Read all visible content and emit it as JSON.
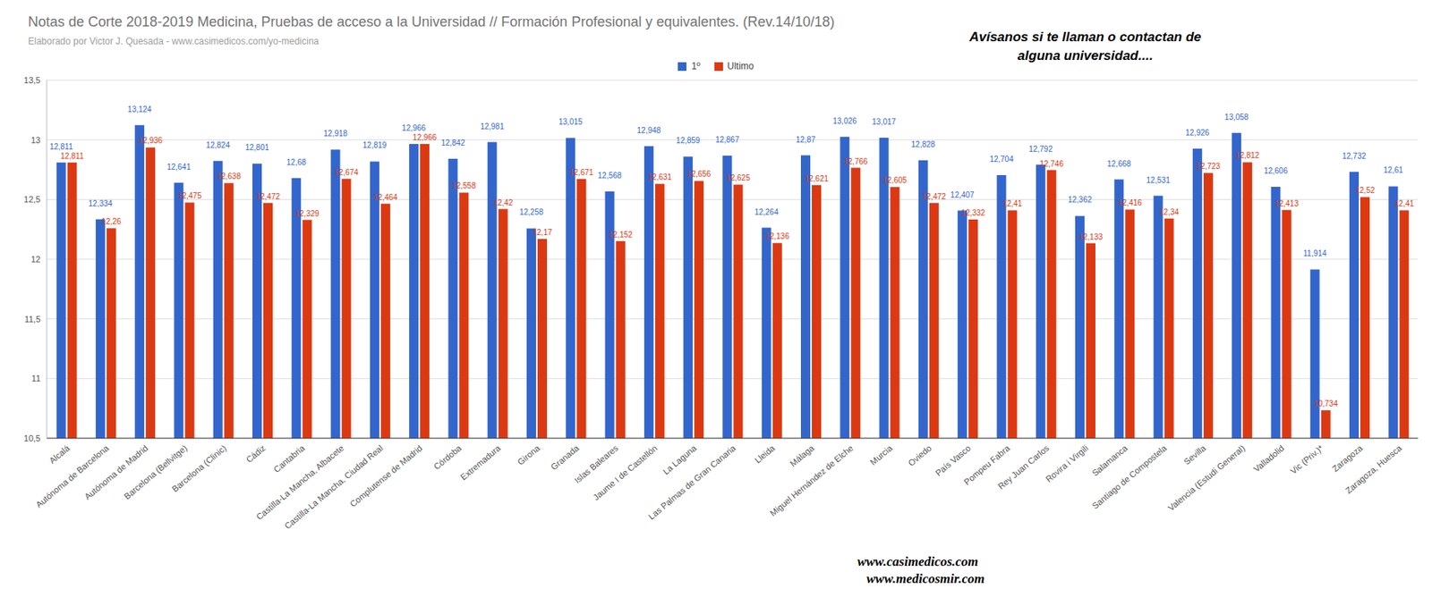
{
  "chart_data": {
    "type": "bar",
    "title": "Notas de Corte 2018-2019 Medicina, Pruebas de acceso a la Universidad // Formación Profesional y equivalentes. (Rev.14/10/18)",
    "subtitle": "Elaborado por Victor J. Quesada - www.casimedicos.com/yo-medicina",
    "annotations": [
      "Avísanos si te llaman o contactan de alguna universidad....",
      "www.casimedicos.com",
      "www.medicosmir.com"
    ],
    "categories": [
      "Alcalá",
      "Autónoma de Barcelona",
      "Autónoma de Madrid",
      "Barcelona (Bellvitge)",
      "Barcelona (Clinic)",
      "Cádiz",
      "Cantabria",
      "Castilla-La Mancha, Albacete",
      "Castilla-La Mancha, Ciudad Real",
      "Complutense de Madrid",
      "Córdoba",
      "Extremadura",
      "Girona",
      "Granada",
      "Islas Baleares",
      "Jaume I de Castellón",
      "La Laguna",
      "Las Palmas de Gran Canaria",
      "Lleida",
      "Málaga",
      "Miguel Hernández de Elche",
      "Murcia",
      "Oviedo",
      "País Vasco",
      "Pompeu Fabra",
      "Rey Juan Carlos",
      "Rovira i Virgili",
      "Salamanca",
      "Santiago de Compostela",
      "Sevilla",
      "Valencia (Estudi General)",
      "Valladolid",
      "Vic (Priv.)*",
      "Zaragoza",
      "Zaragoza, Huesca"
    ],
    "series": [
      {
        "name": "1º",
        "color": "#3366cc",
        "values": [
          12.811,
          12.334,
          13.124,
          12.641,
          12.824,
          12.801,
          12.68,
          12.918,
          12.819,
          12.966,
          12.842,
          12.981,
          12.258,
          13.015,
          12.568,
          12.948,
          12.859,
          12.867,
          12.264,
          12.87,
          13.026,
          13.017,
          12.828,
          12.407,
          12.704,
          12.792,
          12.362,
          12.668,
          12.531,
          12.926,
          13.058,
          12.606,
          11.914,
          12.732,
          12.61
        ],
        "value_labels": [
          "12,811",
          "12,334",
          "13,124",
          "12,641",
          "12,824",
          "12,801",
          "12,68",
          "12,918",
          "12,819",
          "12,966",
          "12,842",
          "12,981",
          "12,258",
          "13,015",
          "12,568",
          "12,948",
          "12,859",
          "12,867",
          "12,264",
          "12,87",
          "13,026",
          "13,017",
          "12,828",
          "12,407",
          "12,704",
          "12,792",
          "12,362",
          "12,668",
          "12,531",
          "12,926",
          "13,058",
          "12,606",
          "11,914",
          "12,732",
          "12,61"
        ]
      },
      {
        "name": "Ultimo",
        "color": "#dc3912",
        "values": [
          12.811,
          12.26,
          12.936,
          12.475,
          12.638,
          12.472,
          12.329,
          12.674,
          12.464,
          12.966,
          12.558,
          12.42,
          12.17,
          12.671,
          12.152,
          12.631,
          12.656,
          12.625,
          12.136,
          12.621,
          12.766,
          12.605,
          12.472,
          12.332,
          12.41,
          12.746,
          12.133,
          12.416,
          12.34,
          12.723,
          12.812,
          12.413,
          10.734,
          12.52,
          12.41
        ],
        "value_labels": [
          "12,811",
          "12,26",
          "12,936",
          "12,475",
          "12,638",
          "12,472",
          "12,329",
          "12,674",
          "12,464",
          "12,966",
          "12,558",
          "12,42",
          "12,17",
          "12,671",
          "12,152",
          "12,631",
          "12,656",
          "12,625",
          "12,136",
          "12,621",
          "12,766",
          "12,605",
          "12,472",
          "12,332",
          "12,41",
          "12,746",
          "12,133",
          "12,416",
          "12,34",
          "12,723",
          "12,812",
          "12,413",
          "10,734",
          "12,52",
          "12,41"
        ]
      }
    ],
    "ylim": [
      10.5,
      13.5
    ],
    "yticks": [
      {
        "value": 10.5,
        "label": "10,5"
      },
      11,
      {
        "value": 11.5,
        "label": "11,5"
      },
      12,
      {
        "value": 12.5,
        "label": "12,5"
      },
      13,
      {
        "value": 13.5,
        "label": "13,5"
      }
    ],
    "grid": true,
    "data_labels": true,
    "legend": "top"
  }
}
